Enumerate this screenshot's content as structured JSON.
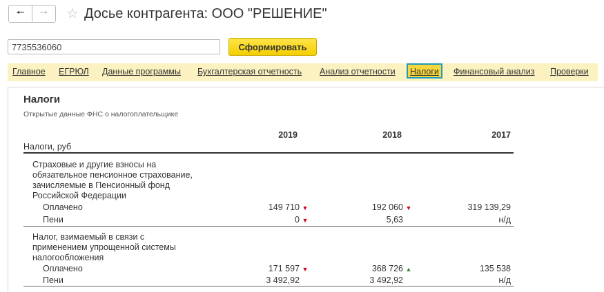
{
  "titlebar": {
    "back_icon": "arrow-left-icon",
    "forward_icon": "arrow-right-icon",
    "favorite_icon": "star-icon",
    "title": "Досье контрагента: ООО \"РЕШЕНИЕ\""
  },
  "search": {
    "inn_value": "7735536060",
    "generate_label": "Сформировать"
  },
  "tabs": [
    {
      "label": "Главное"
    },
    {
      "label": "ЕГРЮЛ"
    },
    {
      "label": "Данные программы"
    },
    {
      "label": "Бухгалтерская отчетность"
    },
    {
      "label": "Анализ отчетности"
    },
    {
      "label": "Налоги",
      "active": true
    },
    {
      "label": "Финансовый анализ"
    },
    {
      "label": "Проверки"
    }
  ],
  "section": {
    "title": "Налоги",
    "subtitle": "Открытые данные ФНС о налогоплательщике"
  },
  "table": {
    "label_header": "Налоги, руб",
    "years": [
      "2019",
      "2018",
      "2017"
    ],
    "groups": [
      {
        "name_lines": [
          "Страховые и другие взносы на",
          "обязательное пенсионное страхование,",
          "зачисляемые в Пенсионный фонд",
          "Российской Федерации"
        ],
        "rows": [
          {
            "label": "Оплачено",
            "values": [
              "149 710",
              "192 060",
              "319 139,29"
            ],
            "trends": [
              "down",
              "down",
              ""
            ]
          },
          {
            "label": "Пени",
            "values": [
              "0",
              "5,63",
              "н/д"
            ],
            "trends": [
              "down",
              "",
              ""
            ]
          }
        ]
      },
      {
        "name_lines": [
          "Налог, взимаемый в связи с",
          "применением упрощенной  системы",
          "налогообложения"
        ],
        "rows": [
          {
            "label": "Оплачено",
            "values": [
              "171 597",
              "368 726",
              "135 538"
            ],
            "trends": [
              "down",
              "up",
              ""
            ]
          },
          {
            "label": "Пени",
            "values": [
              "3 492,92",
              "3 492,92",
              "н/д"
            ],
            "trends": [
              "",
              "",
              ""
            ]
          }
        ]
      }
    ]
  },
  "colors": {
    "accent_yellow": "#f5cf00",
    "tab_bar": "#fbf1c1",
    "active_tab_border": "#1f9bbb",
    "trend_down": "#d0021b",
    "trend_up": "#2e8b2e"
  }
}
